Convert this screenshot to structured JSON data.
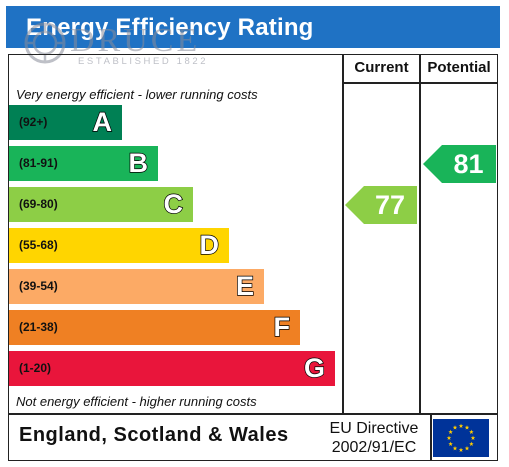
{
  "title": "Energy Efficiency Rating",
  "watermark": {
    "name": "DRUCE",
    "established": "ESTABLISHED 1822"
  },
  "columns": {
    "current": "Current",
    "potential": "Potential"
  },
  "notes": {
    "top": "Very energy efficient - lower running costs",
    "bottom": "Not energy efficient - higher running costs"
  },
  "footer": {
    "country": "England, Scotland & Wales",
    "directive_line1": "EU Directive",
    "directive_line2": "2002/91/EC"
  },
  "colors": {
    "title_bar": "#1f72c4",
    "band_A": "#008054",
    "band_B": "#19b459",
    "band_C": "#8dce46",
    "band_D": "#ffd500",
    "band_E": "#fcaa65",
    "band_F": "#ef8023",
    "band_G": "#e9153b",
    "eu_flag": "#003399",
    "eu_stars": "#ffcc00"
  },
  "chart_data": {
    "type": "bar",
    "title": "Energy Efficiency Rating",
    "categories": [
      "A",
      "B",
      "C",
      "D",
      "E",
      "F",
      "G"
    ],
    "bands": [
      {
        "letter": "A",
        "range": "(92+)",
        "color": "#008054"
      },
      {
        "letter": "B",
        "range": "(81-91)",
        "color": "#19b459"
      },
      {
        "letter": "C",
        "range": "(69-80)",
        "color": "#8dce46"
      },
      {
        "letter": "D",
        "range": "(55-68)",
        "color": "#ffd500"
      },
      {
        "letter": "E",
        "range": "(39-54)",
        "color": "#fcaa65"
      },
      {
        "letter": "F",
        "range": "(21-38)",
        "color": "#ef8023"
      },
      {
        "letter": "G",
        "range": "(1-20)",
        "color": "#e9153b"
      }
    ],
    "current": {
      "value": 77,
      "band": "C",
      "color": "#8dce46"
    },
    "potential": {
      "value": 81,
      "band": "B",
      "color": "#19b459"
    }
  }
}
